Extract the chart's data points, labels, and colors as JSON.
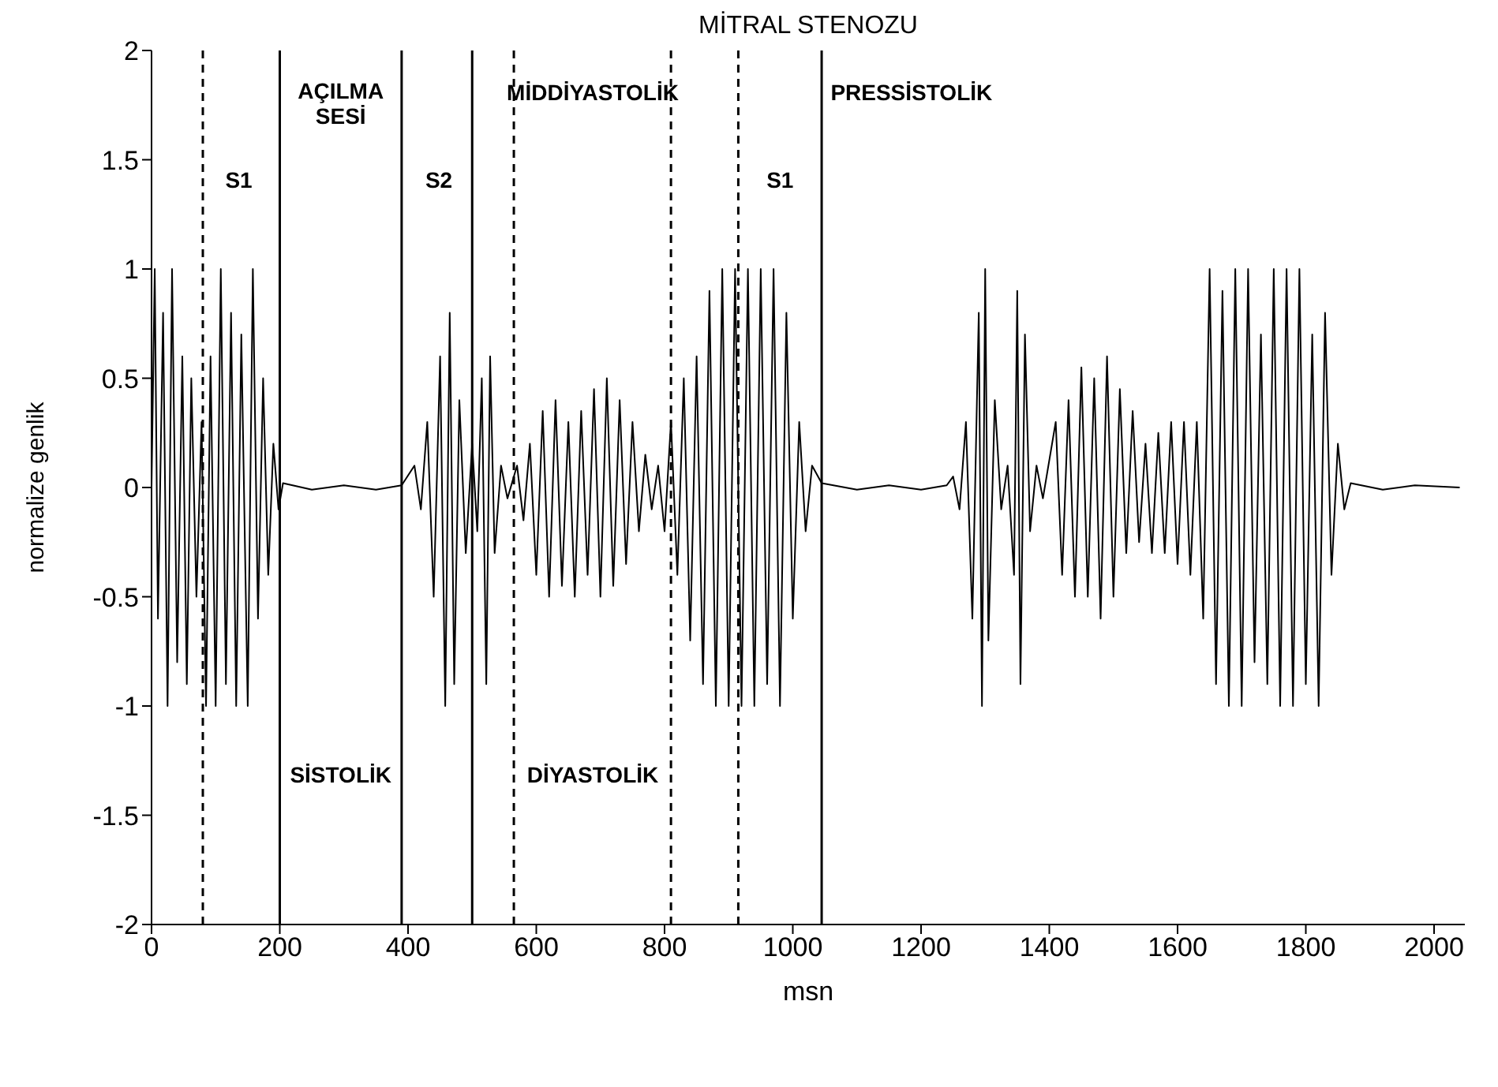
{
  "chart_data": {
    "type": "line",
    "title": "MİTRAL STENOZU",
    "xlabel": "msn",
    "ylabel": "normalize genlik",
    "xlim": [
      0,
      2048
    ],
    "xticks": [
      0,
      200,
      400,
      600,
      800,
      1000,
      1200,
      1400,
      1600,
      1800,
      2000
    ],
    "ylim": [
      -2,
      2
    ],
    "yticks": [
      -2,
      -1.5,
      -1,
      -0.5,
      0,
      0.5,
      1,
      1.5,
      2
    ],
    "grid": false,
    "legend": false,
    "marker": "none",
    "line_style": "solid",
    "series": [
      {
        "color": "#000000",
        "x": [
          0,
          5,
          10,
          18,
          25,
          32,
          40,
          48,
          55,
          62,
          70,
          78,
          85,
          92,
          100,
          108,
          116,
          124,
          132,
          140,
          150,
          158,
          166,
          174,
          182,
          190,
          198,
          205,
          250,
          300,
          350,
          390,
          410,
          420,
          430,
          440,
          450,
          458,
          465,
          472,
          480,
          490,
          500,
          508,
          515,
          522,
          528,
          535,
          545,
          555,
          570,
          580,
          590,
          600,
          610,
          620,
          630,
          640,
          650,
          660,
          670,
          680,
          690,
          700,
          710,
          720,
          730,
          740,
          750,
          760,
          770,
          780,
          790,
          800,
          810,
          820,
          830,
          840,
          850,
          860,
          870,
          880,
          890,
          900,
          910,
          920,
          930,
          940,
          950,
          960,
          970,
          980,
          990,
          1000,
          1010,
          1020,
          1030,
          1045,
          1100,
          1150,
          1200,
          1240,
          1250,
          1260,
          1270,
          1280,
          1290,
          1295,
          1300,
          1305,
          1315,
          1325,
          1335,
          1345,
          1350,
          1355,
          1362,
          1370,
          1380,
          1390,
          1410,
          1420,
          1430,
          1440,
          1450,
          1460,
          1470,
          1480,
          1490,
          1500,
          1510,
          1520,
          1530,
          1540,
          1550,
          1560,
          1570,
          1580,
          1590,
          1600,
          1610,
          1620,
          1630,
          1640,
          1650,
          1660,
          1670,
          1680,
          1690,
          1700,
          1710,
          1720,
          1730,
          1740,
          1750,
          1760,
          1770,
          1780,
          1790,
          1800,
          1810,
          1820,
          1830,
          1840,
          1850,
          1860,
          1870,
          1920,
          1970,
          2040
        ],
        "values": [
          0,
          1,
          -0.6,
          0.8,
          -1,
          1,
          -0.8,
          0.6,
          -0.9,
          0.5,
          -0.5,
          0.3,
          -1,
          0.6,
          -1,
          1,
          -0.9,
          0.8,
          -1,
          0.7,
          -1,
          1,
          -0.6,
          0.5,
          -0.4,
          0.2,
          -0.1,
          0.02,
          -0.01,
          0.01,
          -0.01,
          0.01,
          0.1,
          -0.1,
          0.3,
          -0.5,
          0.6,
          -1,
          0.8,
          -0.9,
          0.4,
          -0.3,
          0.2,
          -0.2,
          0.5,
          -0.9,
          0.6,
          -0.3,
          0.1,
          -0.05,
          0.1,
          -0.15,
          0.2,
          -0.4,
          0.35,
          -0.5,
          0.4,
          -0.45,
          0.3,
          -0.5,
          0.35,
          -0.4,
          0.45,
          -0.5,
          0.5,
          -0.45,
          0.4,
          -0.35,
          0.3,
          -0.2,
          0.15,
          -0.1,
          0.1,
          -0.2,
          0.3,
          -0.4,
          0.5,
          -0.7,
          0.6,
          -0.9,
          0.9,
          -1,
          1,
          -1,
          1,
          -1,
          1,
          -1,
          1,
          -0.9,
          1,
          -1,
          0.8,
          -0.6,
          0.3,
          -0.2,
          0.1,
          0.02,
          -0.01,
          0.01,
          -0.01,
          0.01,
          0.05,
          -0.1,
          0.3,
          -0.6,
          0.8,
          -1,
          1,
          -0.7,
          0.4,
          -0.1,
          0.1,
          -0.4,
          0.9,
          -0.9,
          0.7,
          -0.2,
          0.1,
          -0.05,
          0.3,
          -0.4,
          0.4,
          -0.5,
          0.55,
          -0.5,
          0.5,
          -0.6,
          0.6,
          -0.5,
          0.45,
          -0.3,
          0.35,
          -0.25,
          0.2,
          -0.3,
          0.25,
          -0.3,
          0.3,
          -0.35,
          0.3,
          -0.4,
          0.3,
          -0.6,
          1,
          -0.9,
          0.9,
          -1,
          1,
          -1,
          1,
          -0.8,
          0.7,
          -0.9,
          1,
          -1,
          1,
          -1,
          1,
          -0.9,
          0.7,
          -1,
          0.8,
          -0.4,
          0.2,
          -0.1,
          0.02,
          -0.01,
          0.01,
          0
        ]
      }
    ],
    "ref_lines": [
      {
        "axis": "x",
        "value": 80,
        "line_style": "dashed",
        "color": "#000000"
      },
      {
        "axis": "x",
        "value": 200,
        "line_style": "solid",
        "color": "#000000"
      },
      {
        "axis": "x",
        "value": 390,
        "line_style": "solid",
        "color": "#000000"
      },
      {
        "axis": "x",
        "value": 500,
        "line_style": "solid",
        "color": "#000000"
      },
      {
        "axis": "x",
        "value": 565,
        "line_style": "dashed",
        "color": "#000000"
      },
      {
        "axis": "x",
        "value": 810,
        "line_style": "dashed",
        "color": "#000000"
      },
      {
        "axis": "x",
        "value": 915,
        "line_style": "dashed",
        "color": "#000000"
      },
      {
        "axis": "x",
        "value": 1045,
        "line_style": "solid",
        "color": "#000000"
      }
    ],
    "annotations": [
      "S1",
      "S2",
      "S1",
      "AÇILMA SESİ",
      "MİDDİYASTOLİK",
      "PRESSİSTOLİK",
      "SİSTOLİK",
      "DİYASTOLİK"
    ]
  }
}
